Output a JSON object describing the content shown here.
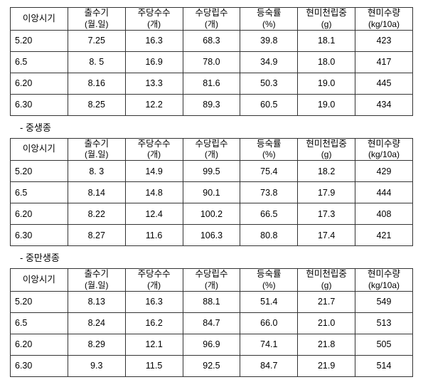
{
  "headers": {
    "col1": "이앙시기",
    "col2a": "출수기",
    "col2b": "(월.일)",
    "col3a": "주당수수",
    "col3b": "(개)",
    "col4a": "수당립수",
    "col4b": "(개)",
    "col5a": "등숙률",
    "col5b": "(%)",
    "col6a": "현미천립중",
    "col6b": "(g)",
    "col7a": "현미수량",
    "col7b": "(kg/10a)"
  },
  "sections": {
    "s2label": "- 중생종",
    "s3label": "- 중만생종"
  },
  "table1": {
    "rows": [
      {
        "c1": "5.20",
        "c2": "7.25",
        "c3": "16.3",
        "c4": "68.3",
        "c5": "39.8",
        "c6": "18.1",
        "c7": "423"
      },
      {
        "c1": "6.5",
        "c2": "8. 5",
        "c3": "16.9",
        "c4": "78.0",
        "c5": "34.9",
        "c6": "18.0",
        "c7": "417"
      },
      {
        "c1": "6.20",
        "c2": "8.16",
        "c3": "13.3",
        "c4": "81.6",
        "c5": "50.3",
        "c6": "19.0",
        "c7": "445"
      },
      {
        "c1": "6.30",
        "c2": "8.25",
        "c3": "12.2",
        "c4": "89.3",
        "c5": "60.5",
        "c6": "19.0",
        "c7": "434"
      }
    ]
  },
  "table2": {
    "rows": [
      {
        "c1": "5.20",
        "c2": "8. 3",
        "c3": "14.9",
        "c4": "99.5",
        "c5": "75.4",
        "c6": "18.2",
        "c7": "429"
      },
      {
        "c1": "6.5",
        "c2": "8.14",
        "c3": "14.8",
        "c4": "90.1",
        "c5": "73.8",
        "c6": "17.9",
        "c7": "444"
      },
      {
        "c1": "6.20",
        "c2": "8.22",
        "c3": "12.4",
        "c4": "100.2",
        "c5": "66.5",
        "c6": "17.3",
        "c7": "408"
      },
      {
        "c1": "6.30",
        "c2": "8.27",
        "c3": "11.6",
        "c4": "106.3",
        "c5": "80.8",
        "c6": "17.4",
        "c7": "421"
      }
    ]
  },
  "table3": {
    "rows": [
      {
        "c1": "5.20",
        "c2": "8.13",
        "c3": "16.3",
        "c4": "88.1",
        "c5": "51.4",
        "c6": "21.7",
        "c7": "549"
      },
      {
        "c1": "6.5",
        "c2": "8.24",
        "c3": "16.2",
        "c4": "84.7",
        "c5": "66.0",
        "c6": "21.0",
        "c7": "513"
      },
      {
        "c1": "6.20",
        "c2": "8.29",
        "c3": "12.1",
        "c4": "96.9",
        "c5": "74.1",
        "c6": "21.8",
        "c7": "505"
      },
      {
        "c1": "6.30",
        "c2": "9.3",
        "c3": "11.5",
        "c4": "92.5",
        "c5": "84.7",
        "c6": "21.9",
        "c7": "514"
      }
    ]
  }
}
